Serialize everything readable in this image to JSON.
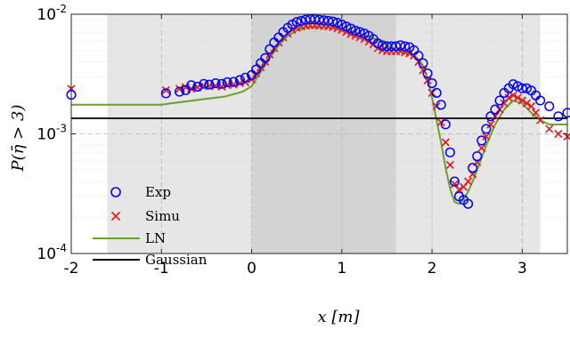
{
  "chart_data": {
    "type": "scatter",
    "xlabel": "x [m]",
    "ylabel": "P(η̄ > 3)",
    "xlim": [
      -2,
      3.5
    ],
    "ylim_exp": [
      -4,
      -2
    ],
    "yscale": "log",
    "x_ticks": [
      "-2",
      "-1",
      "0",
      "1",
      "2",
      "3"
    ],
    "x_tick_values": [
      -2,
      -1,
      0,
      1,
      2,
      3
    ],
    "y_ticks": [
      {
        "base": "10",
        "exp": "-4",
        "value": -4
      },
      {
        "base": "10",
        "exp": "-3",
        "value": -3
      },
      {
        "base": "10",
        "exp": "-2",
        "value": -2
      }
    ],
    "grid": true,
    "shaded_regions": [
      {
        "x_range": [
          -1.6,
          3.2
        ],
        "color": "#e6e6e6"
      },
      {
        "x_range": [
          0,
          1.6
        ],
        "color": "#d3d3d3"
      }
    ],
    "legend": {
      "position": "bottom-left",
      "entries": [
        {
          "label": "Exp",
          "style": "circle",
          "color": "#0000ff"
        },
        {
          "label": "Simu",
          "style": "cross",
          "color": "#e02020"
        },
        {
          "label": "LN",
          "style": "line",
          "color": "#6aa12a"
        },
        {
          "label": "Gaussian",
          "style": "line",
          "color": "#000000"
        }
      ]
    },
    "series": [
      {
        "name": "Exp",
        "marker": "circle",
        "color": "#0000ff",
        "x": [
          -2.0,
          -0.95,
          -0.8,
          -0.73,
          -0.67,
          -0.6,
          -0.53,
          -0.47,
          -0.4,
          -0.33,
          -0.27,
          -0.2,
          -0.13,
          -0.07,
          0.0,
          0.05,
          0.1,
          0.15,
          0.2,
          0.25,
          0.3,
          0.35,
          0.4,
          0.45,
          0.5,
          0.55,
          0.6,
          0.65,
          0.7,
          0.75,
          0.8,
          0.85,
          0.9,
          0.95,
          1.0,
          1.05,
          1.1,
          1.15,
          1.2,
          1.25,
          1.3,
          1.35,
          1.4,
          1.45,
          1.5,
          1.55,
          1.6,
          1.65,
          1.7,
          1.75,
          1.8,
          1.85,
          1.9,
          1.95,
          2.0,
          2.05,
          2.1,
          2.15,
          2.2,
          2.25,
          2.3,
          2.35,
          2.4,
          2.45,
          2.5,
          2.55,
          2.6,
          2.65,
          2.7,
          2.75,
          2.8,
          2.85,
          2.9,
          2.95,
          3.0,
          3.05,
          3.1,
          3.15,
          3.2,
          3.3,
          3.4,
          3.5
        ],
        "y": [
          0.00212,
          0.00218,
          0.00225,
          0.00232,
          0.00255,
          0.00248,
          0.00262,
          0.00258,
          0.00265,
          0.00262,
          0.0027,
          0.00272,
          0.00282,
          0.00295,
          0.0031,
          0.00345,
          0.0039,
          0.0043,
          0.0051,
          0.0058,
          0.0064,
          0.0071,
          0.0077,
          0.0082,
          0.0086,
          0.0088,
          0.009,
          0.0091,
          0.0091,
          0.009,
          0.0089,
          0.0088,
          0.0087,
          0.0085,
          0.0082,
          0.0079,
          0.0076,
          0.0073,
          0.0071,
          0.0069,
          0.0066,
          0.0062,
          0.0057,
          0.0055,
          0.0054,
          0.0054,
          0.0054,
          0.0055,
          0.0054,
          0.0053,
          0.005,
          0.0045,
          0.0039,
          0.0032,
          0.00265,
          0.0022,
          0.00175,
          0.0012,
          0.0007,
          0.0004,
          0.0003,
          0.00028,
          0.00026,
          0.00052,
          0.00065,
          0.00088,
          0.0011,
          0.0014,
          0.0016,
          0.0019,
          0.0022,
          0.0024,
          0.0026,
          0.0025,
          0.0024,
          0.0024,
          0.0023,
          0.0021,
          0.0019,
          0.0017,
          0.0014,
          0.0015
        ]
      },
      {
        "name": "Simu",
        "marker": "cross",
        "color": "#e02020",
        "x": [
          -2.0,
          -0.95,
          -0.8,
          -0.73,
          -0.67,
          -0.6,
          -0.53,
          -0.47,
          -0.4,
          -0.33,
          -0.27,
          -0.2,
          -0.13,
          -0.07,
          0.0,
          0.05,
          0.1,
          0.15,
          0.2,
          0.25,
          0.3,
          0.35,
          0.4,
          0.45,
          0.5,
          0.55,
          0.6,
          0.65,
          0.7,
          0.75,
          0.8,
          0.85,
          0.9,
          0.95,
          1.0,
          1.05,
          1.1,
          1.15,
          1.2,
          1.25,
          1.3,
          1.35,
          1.4,
          1.45,
          1.5,
          1.55,
          1.6,
          1.65,
          1.7,
          1.75,
          1.8,
          1.85,
          1.9,
          1.95,
          2.0,
          2.05,
          2.1,
          2.15,
          2.2,
          2.25,
          2.3,
          2.35,
          2.4,
          2.45,
          2.5,
          2.55,
          2.6,
          2.65,
          2.7,
          2.75,
          2.8,
          2.85,
          2.9,
          2.95,
          3.0,
          3.05,
          3.1,
          3.15,
          3.2,
          3.3,
          3.4,
          3.5
        ],
        "y": [
          0.00238,
          0.00232,
          0.00238,
          0.00245,
          0.00238,
          0.00245,
          0.00252,
          0.0025,
          0.00252,
          0.00248,
          0.00255,
          0.00258,
          0.00265,
          0.0027,
          0.00285,
          0.0032,
          0.0036,
          0.004,
          0.0046,
          0.0052,
          0.0058,
          0.0064,
          0.0069,
          0.0074,
          0.0077,
          0.0079,
          0.008,
          0.0081,
          0.0081,
          0.008,
          0.008,
          0.0079,
          0.0078,
          0.0076,
          0.0074,
          0.0071,
          0.0068,
          0.0066,
          0.0064,
          0.0062,
          0.0059,
          0.0056,
          0.0052,
          0.005,
          0.0049,
          0.0049,
          0.0049,
          0.0049,
          0.0048,
          0.0047,
          0.0045,
          0.004,
          0.0034,
          0.0028,
          0.0022,
          0.0017,
          0.00125,
          0.00085,
          0.00055,
          0.00038,
          0.00034,
          0.00036,
          0.0004,
          0.00046,
          0.00058,
          0.00076,
          0.00095,
          0.0012,
          0.0014,
          0.0016,
          0.0018,
          0.002,
          0.0021,
          0.002,
          0.0019,
          0.0018,
          0.0017,
          0.0015,
          0.0013,
          0.0011,
          0.001,
          0.00095
        ]
      },
      {
        "name": "LN",
        "marker": "line",
        "color": "#6aa12a",
        "x": [
          -2.0,
          -1.0,
          -0.9,
          -0.6,
          -0.3,
          -0.1,
          0.0,
          0.1,
          0.2,
          0.3,
          0.4,
          0.5,
          0.6,
          0.7,
          0.8,
          0.9,
          1.0,
          1.1,
          1.2,
          1.3,
          1.4,
          1.5,
          1.6,
          1.7,
          1.75,
          1.8,
          1.85,
          1.9,
          1.95,
          2.0,
          2.05,
          2.1,
          2.15,
          2.2,
          2.25,
          2.3,
          2.35,
          2.4,
          2.45,
          2.5,
          2.6,
          2.7,
          2.8,
          2.9,
          3.0,
          3.1,
          3.2,
          3.3,
          3.5
        ],
        "y": [
          0.00175,
          0.00175,
          0.0018,
          0.00192,
          0.00205,
          0.00225,
          0.0025,
          0.0033,
          0.0043,
          0.0055,
          0.0066,
          0.0073,
          0.0077,
          0.0078,
          0.0078,
          0.0077,
          0.0075,
          0.0072,
          0.0069,
          0.0065,
          0.0061,
          0.0055,
          0.005,
          0.0048,
          0.0047,
          0.0045,
          0.0042,
          0.0037,
          0.0029,
          0.002,
          0.0013,
          0.00085,
          0.00052,
          0.00035,
          0.00027,
          0.00026,
          0.00028,
          0.00033,
          0.0004,
          0.0005,
          0.0008,
          0.0012,
          0.0016,
          0.0019,
          0.0018,
          0.0015,
          0.0013,
          0.0012,
          0.0012
        ]
      },
      {
        "name": "Gaussian",
        "marker": "line",
        "color": "#000000",
        "x": [
          -2.0,
          3.5
        ],
        "y": [
          0.00135,
          0.00135
        ]
      }
    ]
  }
}
